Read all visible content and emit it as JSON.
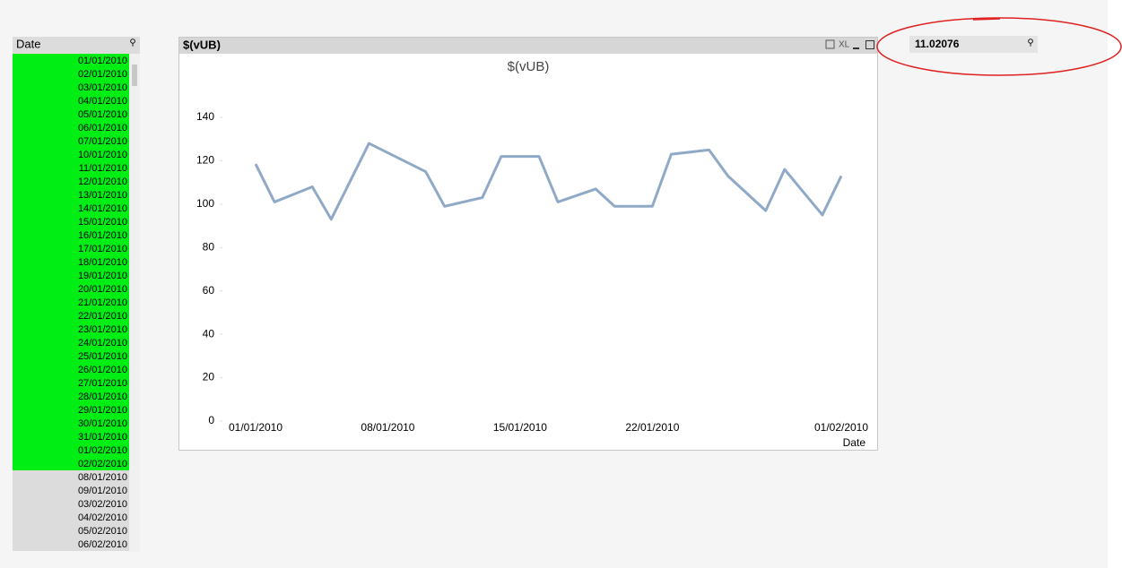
{
  "listbox": {
    "title": "Date",
    "items": [
      {
        "label": "01/01/2010",
        "selected": true
      },
      {
        "label": "02/01/2010",
        "selected": true
      },
      {
        "label": "03/01/2010",
        "selected": true
      },
      {
        "label": "04/01/2010",
        "selected": true
      },
      {
        "label": "05/01/2010",
        "selected": true
      },
      {
        "label": "06/01/2010",
        "selected": true
      },
      {
        "label": "07/01/2010",
        "selected": true
      },
      {
        "label": "10/01/2010",
        "selected": true
      },
      {
        "label": "11/01/2010",
        "selected": true
      },
      {
        "label": "12/01/2010",
        "selected": true
      },
      {
        "label": "13/01/2010",
        "selected": true
      },
      {
        "label": "14/01/2010",
        "selected": true
      },
      {
        "label": "15/01/2010",
        "selected": true
      },
      {
        "label": "16/01/2010",
        "selected": true
      },
      {
        "label": "17/01/2010",
        "selected": true
      },
      {
        "label": "18/01/2010",
        "selected": true
      },
      {
        "label": "19/01/2010",
        "selected": true
      },
      {
        "label": "20/01/2010",
        "selected": true
      },
      {
        "label": "21/01/2010",
        "selected": true
      },
      {
        "label": "22/01/2010",
        "selected": true
      },
      {
        "label": "23/01/2010",
        "selected": true
      },
      {
        "label": "24/01/2010",
        "selected": true
      },
      {
        "label": "25/01/2010",
        "selected": true
      },
      {
        "label": "26/01/2010",
        "selected": true
      },
      {
        "label": "27/01/2010",
        "selected": true
      },
      {
        "label": "28/01/2010",
        "selected": true
      },
      {
        "label": "29/01/2010",
        "selected": true
      },
      {
        "label": "30/01/2010",
        "selected": true
      },
      {
        "label": "31/01/2010",
        "selected": true
      },
      {
        "label": "01/02/2010",
        "selected": true
      },
      {
        "label": "02/02/2010",
        "selected": true
      },
      {
        "label": "08/01/2010",
        "selected": false
      },
      {
        "label": "09/01/2010",
        "selected": false
      },
      {
        "label": "03/02/2010",
        "selected": false
      },
      {
        "label": "04/02/2010",
        "selected": false
      },
      {
        "label": "05/02/2010",
        "selected": false
      },
      {
        "label": "06/02/2010",
        "selected": false
      }
    ]
  },
  "chart_window": {
    "caption": "$(vUB)",
    "icon_text": "XL"
  },
  "chart_data": {
    "type": "line",
    "title": "$(vUB)",
    "x_label": "Date",
    "color": "#8fa9c6",
    "x": [
      "01/01/2010",
      "02/01/2010",
      "03/01/2010",
      "04/01/2010",
      "05/01/2010",
      "06/01/2010",
      "07/01/2010",
      "10/01/2010",
      "11/01/2010",
      "12/01/2010",
      "13/01/2010",
      "14/01/2010",
      "15/01/2010",
      "16/01/2010",
      "17/01/2010",
      "18/01/2010",
      "19/01/2010",
      "20/01/2010",
      "21/01/2010",
      "22/01/2010",
      "23/01/2010",
      "24/01/2010",
      "25/01/2010",
      "26/01/2010",
      "27/01/2010",
      "28/01/2010",
      "29/01/2010",
      "30/01/2010",
      "31/01/2010",
      "01/02/2010"
    ],
    "values": [
      118.5,
      101,
      104.5,
      108,
      93,
      110.5,
      128,
      115,
      99,
      101,
      103,
      122,
      122,
      122,
      101,
      104,
      107,
      99,
      99,
      99,
      123,
      124,
      125,
      113,
      105,
      97,
      116,
      105.5,
      95,
      113
    ],
    "xlim": [
      "01/01/2010",
      "01/02/2010"
    ],
    "xticks": [
      "01/01/2010",
      "08/01/2010",
      "15/01/2010",
      "22/01/2010",
      "01/02/2010"
    ],
    "ylim": [
      0,
      140
    ],
    "yticks": [
      0,
      20,
      40,
      60,
      80,
      100,
      120,
      140
    ]
  },
  "inputbox": {
    "value": "11.02076"
  }
}
